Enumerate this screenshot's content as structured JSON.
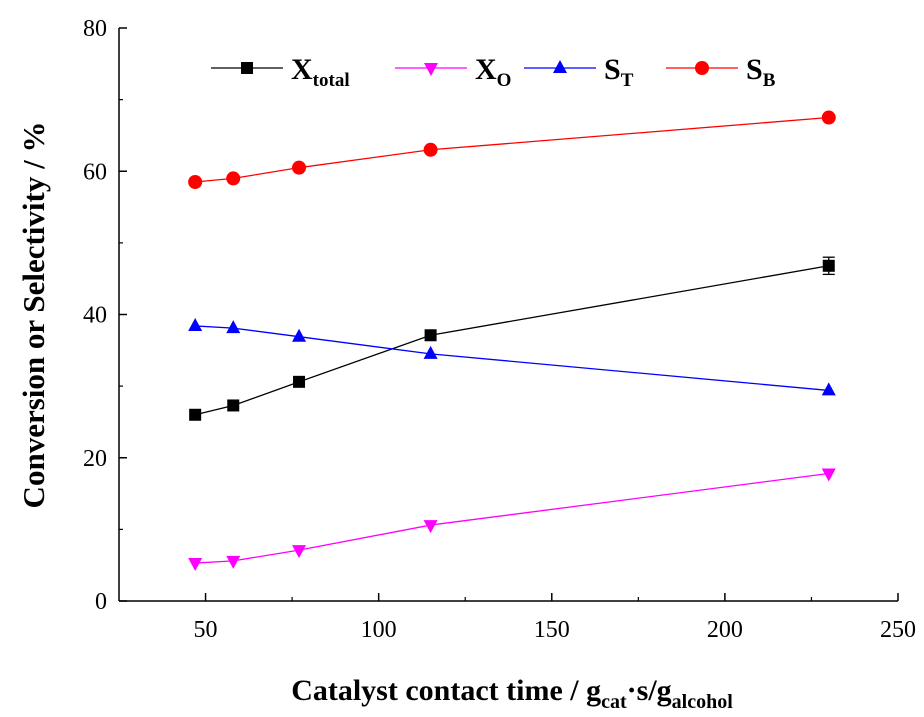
{
  "chart_data": {
    "type": "line",
    "xlabel": {
      "main": "Catalyst contact time / g",
      "sub1": "cat",
      "mid": "·s/g",
      "sub2": "alcohol"
    },
    "ylabel": "Conversion or Selectivity / %",
    "xlim": [
      25,
      250
    ],
    "ylim": [
      0,
      80
    ],
    "xticks": [
      50,
      100,
      150,
      200,
      250
    ],
    "yticks": [
      0,
      20,
      40,
      60,
      80
    ],
    "x": [
      47,
      58,
      77,
      115,
      230
    ],
    "legend_position": "top",
    "series": [
      {
        "name": "X",
        "name_sub": "total",
        "marker": "square",
        "color": "#000000",
        "values": [
          26.0,
          27.3,
          30.6,
          37.1,
          46.8
        ],
        "error": [
          0,
          0,
          0,
          0,
          1.2
        ]
      },
      {
        "name": "X",
        "name_sub": "O",
        "marker": "triangle-down",
        "color": "#ff00ff",
        "values": [
          5.3,
          5.6,
          7.1,
          10.6,
          17.8
        ],
        "error": [
          0,
          0,
          0,
          0,
          0
        ]
      },
      {
        "name": "S",
        "name_sub": "T",
        "marker": "triangle-up",
        "color": "#0000ff",
        "values": [
          38.4,
          38.1,
          36.9,
          34.5,
          29.4
        ],
        "error": [
          0,
          0,
          0,
          0,
          0
        ]
      },
      {
        "name": "S",
        "name_sub": "B",
        "marker": "circle",
        "color": "#ff0000",
        "values": [
          58.5,
          59.0,
          60.5,
          63.0,
          67.5
        ],
        "error": [
          0,
          0,
          0,
          0,
          0
        ]
      }
    ]
  }
}
